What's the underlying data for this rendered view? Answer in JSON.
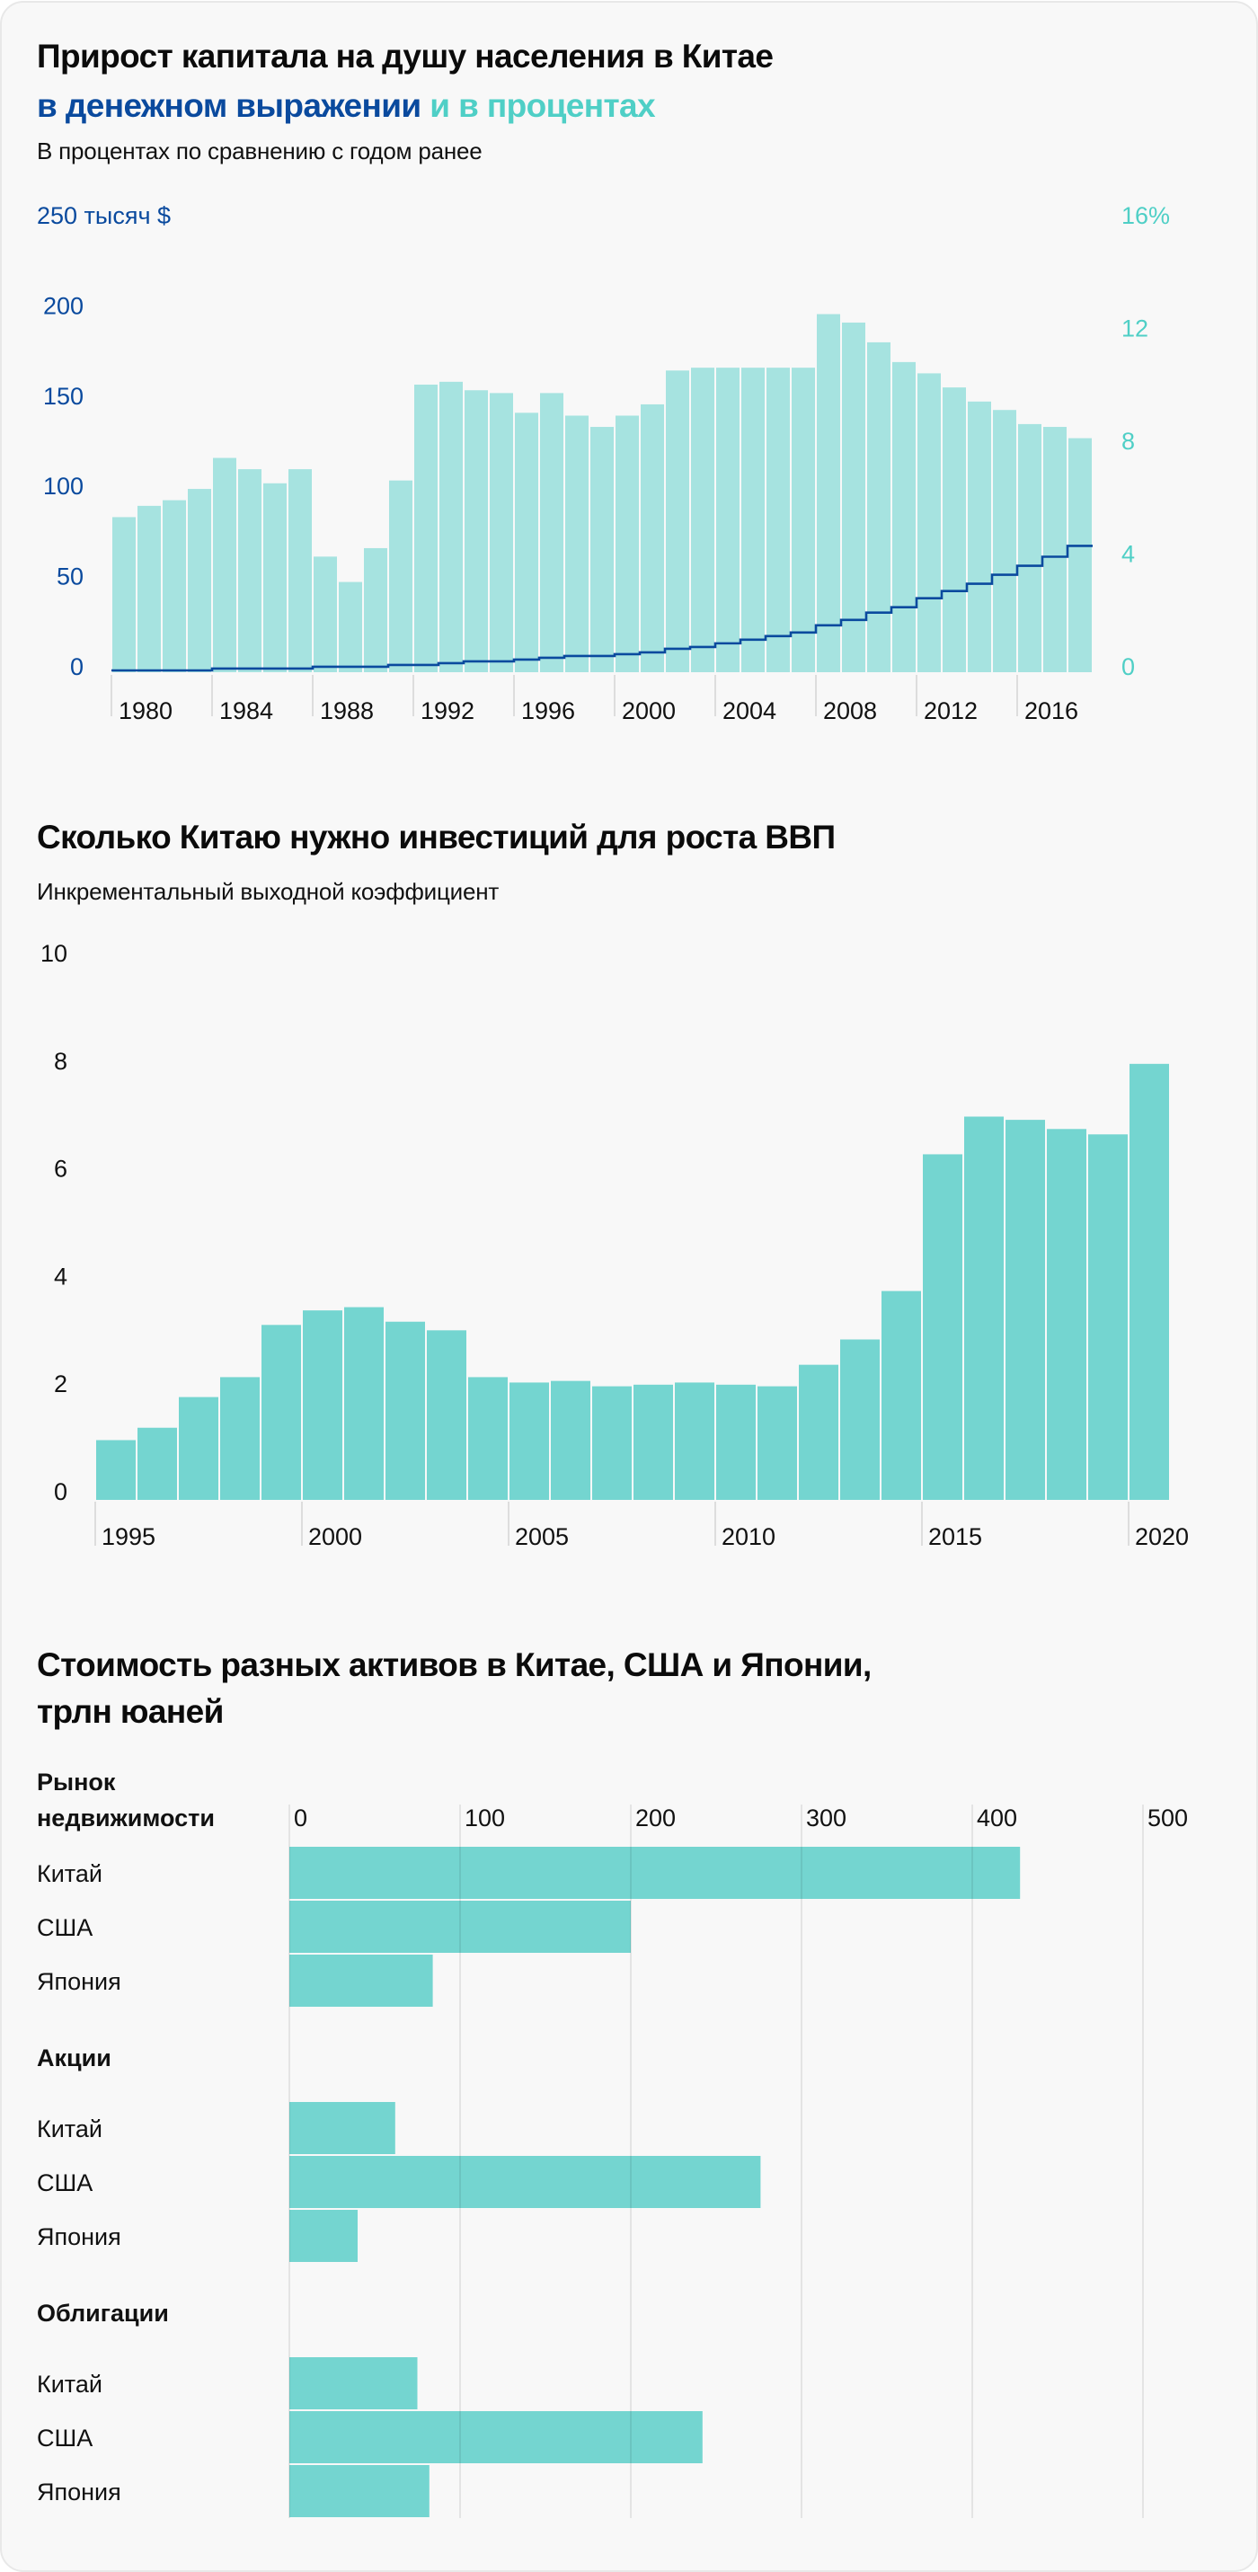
{
  "colors": {
    "blue": "#0a4a9e",
    "teal_text": "#4fcfc6",
    "bar_light": "#a6e3e0",
    "bar_mid": "#74d5d0",
    "tick": "#dddddd",
    "grid": "#d9d9d9",
    "text": "#111111"
  },
  "chart_data": [
    {
      "type": "bar+line",
      "title": "Прирост капитала на душу населения в Китае",
      "title_line2_part1": "в денежном выражении",
      "title_line2_part2": "и в процентах",
      "subtitle": "В процентах по сравнению с годом ранее",
      "x": [
        1980,
        1981,
        1982,
        1983,
        1984,
        1985,
        1986,
        1987,
        1988,
        1989,
        1990,
        1991,
        1992,
        1993,
        1994,
        1995,
        1996,
        1997,
        1998,
        1999,
        2000,
        2001,
        2002,
        2003,
        2004,
        2005,
        2006,
        2007,
        2008,
        2009,
        2010,
        2011,
        2012,
        2013,
        2014,
        2015,
        2016,
        2017,
        2018
      ],
      "x_tick_labels": [
        "1980",
        "1984",
        "1988",
        "1992",
        "1996",
        "2000",
        "2004",
        "2008",
        "2012",
        "2016"
      ],
      "left_axis": {
        "ylabel": "тысяч $",
        "ylim": [
          0,
          250
        ],
        "tick_labels": [
          "0",
          "50",
          "100",
          "150",
          "200",
          "250 тысяч $"
        ],
        "tick_values": [
          0,
          50,
          100,
          150,
          200,
          250
        ]
      },
      "right_axis": {
        "ylim": [
          0,
          16
        ],
        "tick_labels": [
          "0",
          "4",
          "8",
          "12",
          "16%"
        ],
        "tick_values": [
          0,
          4,
          8,
          12,
          16
        ]
      },
      "series": [
        {
          "name": "в процентах",
          "type": "bar",
          "axis": "right",
          "values": [
            5.5,
            5.9,
            6.1,
            6.5,
            7.6,
            7.2,
            6.7,
            7.2,
            4.1,
            3.2,
            4.4,
            6.8,
            10.2,
            10.3,
            10.0,
            9.9,
            9.2,
            9.9,
            9.1,
            8.7,
            9.1,
            9.5,
            10.7,
            10.8,
            10.8,
            10.8,
            10.8,
            10.8,
            12.7,
            12.4,
            11.7,
            11.0,
            10.6,
            10.1,
            9.6,
            9.3,
            8.8,
            8.7,
            8.3
          ]
        },
        {
          "name": "в денежном выражении",
          "type": "step-line",
          "axis": "left",
          "values": [
            1,
            1,
            1,
            1,
            2,
            2,
            2,
            2,
            3,
            3,
            3,
            4,
            4,
            5,
            6,
            6,
            7,
            8,
            9,
            9,
            10,
            11,
            13,
            14,
            16,
            18,
            20,
            22,
            26,
            29,
            33,
            36,
            41,
            45,
            49,
            54,
            59,
            64,
            70
          ]
        }
      ]
    },
    {
      "type": "bar",
      "title": "Сколько Китаю нужно инвестиций для роста ВВП",
      "subtitle": "Инкрементальный выходной коэффициент",
      "x": [
        1995,
        1996,
        1997,
        1998,
        1999,
        2000,
        2001,
        2002,
        2003,
        2004,
        2005,
        2006,
        2007,
        2008,
        2009,
        2010,
        2011,
        2012,
        2013,
        2014,
        2015,
        2016,
        2017,
        2018,
        2019,
        2020
      ],
      "values": [
        1.11,
        1.34,
        1.91,
        2.28,
        3.25,
        3.52,
        3.58,
        3.31,
        3.15,
        2.28,
        2.18,
        2.21,
        2.11,
        2.14,
        2.18,
        2.14,
        2.11,
        2.51,
        2.98,
        3.88,
        6.42,
        7.12,
        7.06,
        6.89,
        6.79,
        8.1
      ],
      "x_tick_labels": [
        "1995",
        "2000",
        "2005",
        "2010",
        "2015",
        "2020"
      ],
      "ylim": [
        0,
        10
      ],
      "y_tick_labels": [
        "0",
        "2",
        "4",
        "6",
        "8",
        "10"
      ],
      "y_tick_values": [
        0,
        2,
        4,
        6,
        8,
        10
      ]
    },
    {
      "type": "horizontal-bar",
      "title_line1": "Стоимость разных активов в Китае, США и Японии,",
      "title_line2": "трлн юаней",
      "xlim": [
        0,
        500
      ],
      "x_tick_labels": [
        "0",
        "100",
        "200",
        "300",
        "400",
        "500"
      ],
      "x_tick_values": [
        0,
        100,
        200,
        300,
        400,
        500
      ],
      "groups": [
        {
          "label_line1": "Рынок",
          "label_line2": "недвижимости",
          "bars": [
            {
              "label": "Китай",
              "value": 428
            },
            {
              "label": "США",
              "value": 200
            },
            {
              "label": "Япония",
              "value": 84
            }
          ]
        },
        {
          "label_line1": "Акции",
          "label_line2": "",
          "bars": [
            {
              "label": "Китай",
              "value": 62
            },
            {
              "label": "США",
              "value": 276
            },
            {
              "label": "Япония",
              "value": 40
            }
          ]
        },
        {
          "label_line1": "Облигации",
          "label_line2": "",
          "bars": [
            {
              "label": "Китай",
              "value": 75
            },
            {
              "label": "США",
              "value": 242
            },
            {
              "label": "Япония",
              "value": 82
            }
          ]
        }
      ]
    }
  ]
}
